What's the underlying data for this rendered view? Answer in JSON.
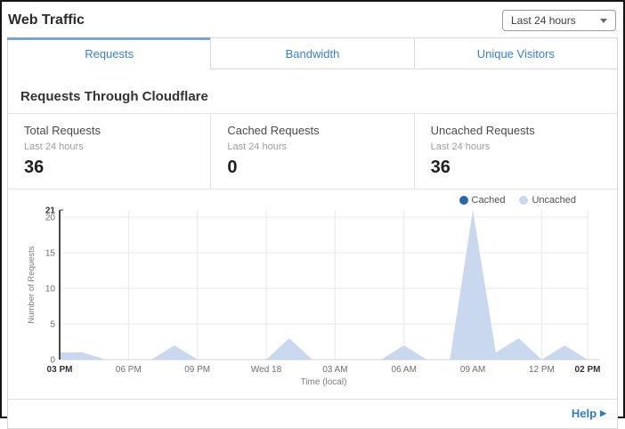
{
  "header": {
    "title": "Web Traffic",
    "time_range": {
      "value": "Last 24 hours",
      "caret_icon": "caret-down"
    }
  },
  "tabs": [
    {
      "label": "Requests",
      "active": true
    },
    {
      "label": "Bandwidth",
      "active": false
    },
    {
      "label": "Unique Visitors",
      "active": false
    }
  ],
  "section": {
    "heading": "Requests Through Cloudflare"
  },
  "stats": [
    {
      "label": "Total Requests",
      "period": "Last 24 hours",
      "value": "36"
    },
    {
      "label": "Cached Requests",
      "period": "Last 24 hours",
      "value": "0"
    },
    {
      "label": "Uncached Requests",
      "period": "Last 24 hours",
      "value": "36"
    }
  ],
  "chart_data": {
    "type": "area",
    "title": "",
    "xlabel": "Time (local)",
    "ylabel": "Number of Requests",
    "x_unit": "hours from 03 PM",
    "x_range_hours": 23,
    "x_ticks": [
      {
        "hour": 0,
        "label": "03 PM",
        "bold": true
      },
      {
        "hour": 3,
        "label": "06 PM",
        "bold": false
      },
      {
        "hour": 6,
        "label": "09 PM",
        "bold": false
      },
      {
        "hour": 9,
        "label": "Wed 18",
        "bold": false
      },
      {
        "hour": 12,
        "label": "03 AM",
        "bold": false
      },
      {
        "hour": 15,
        "label": "06 AM",
        "bold": false
      },
      {
        "hour": 18,
        "label": "09 AM",
        "bold": false
      },
      {
        "hour": 21,
        "label": "12 PM",
        "bold": false
      },
      {
        "hour": 23,
        "label": "02 PM",
        "bold": true
      }
    ],
    "y_ticks": [
      0,
      5,
      10,
      15,
      20
    ],
    "y_max_label": 21,
    "ylim": [
      0,
      21
    ],
    "grid": true,
    "legend_position": "top-right",
    "series": [
      {
        "name": "Cached",
        "color": "#2d66a5",
        "values": [
          0,
          0,
          0,
          0,
          0,
          0,
          0,
          0,
          0,
          0,
          0,
          0,
          0,
          0,
          0,
          0,
          0,
          0,
          0,
          0,
          0,
          0,
          0,
          0
        ]
      },
      {
        "name": "Uncached",
        "color": "#c9d8ee",
        "values": [
          1,
          1,
          0,
          0,
          0,
          2,
          0,
          0,
          0,
          0,
          3,
          0,
          0,
          0,
          0,
          2,
          0,
          0,
          21,
          1,
          3,
          0,
          2,
          0
        ]
      }
    ]
  },
  "footer": {
    "help_label": "Help",
    "help_arrow_icon": "play-right"
  },
  "colors": {
    "tab_accent": "#7fa3c9",
    "tab_text": "#3c80bd",
    "link_blue": "#2f7cba",
    "cached_dot": "#2d66a5",
    "uncached_fill": "#c9d8ee",
    "grid_line": "#e9e9e9",
    "axis_dark": "#4a4a4a",
    "axis_light": "#cfcfcf",
    "tick_text": "#6e6e6e",
    "tick_text_bold": "#333333"
  }
}
